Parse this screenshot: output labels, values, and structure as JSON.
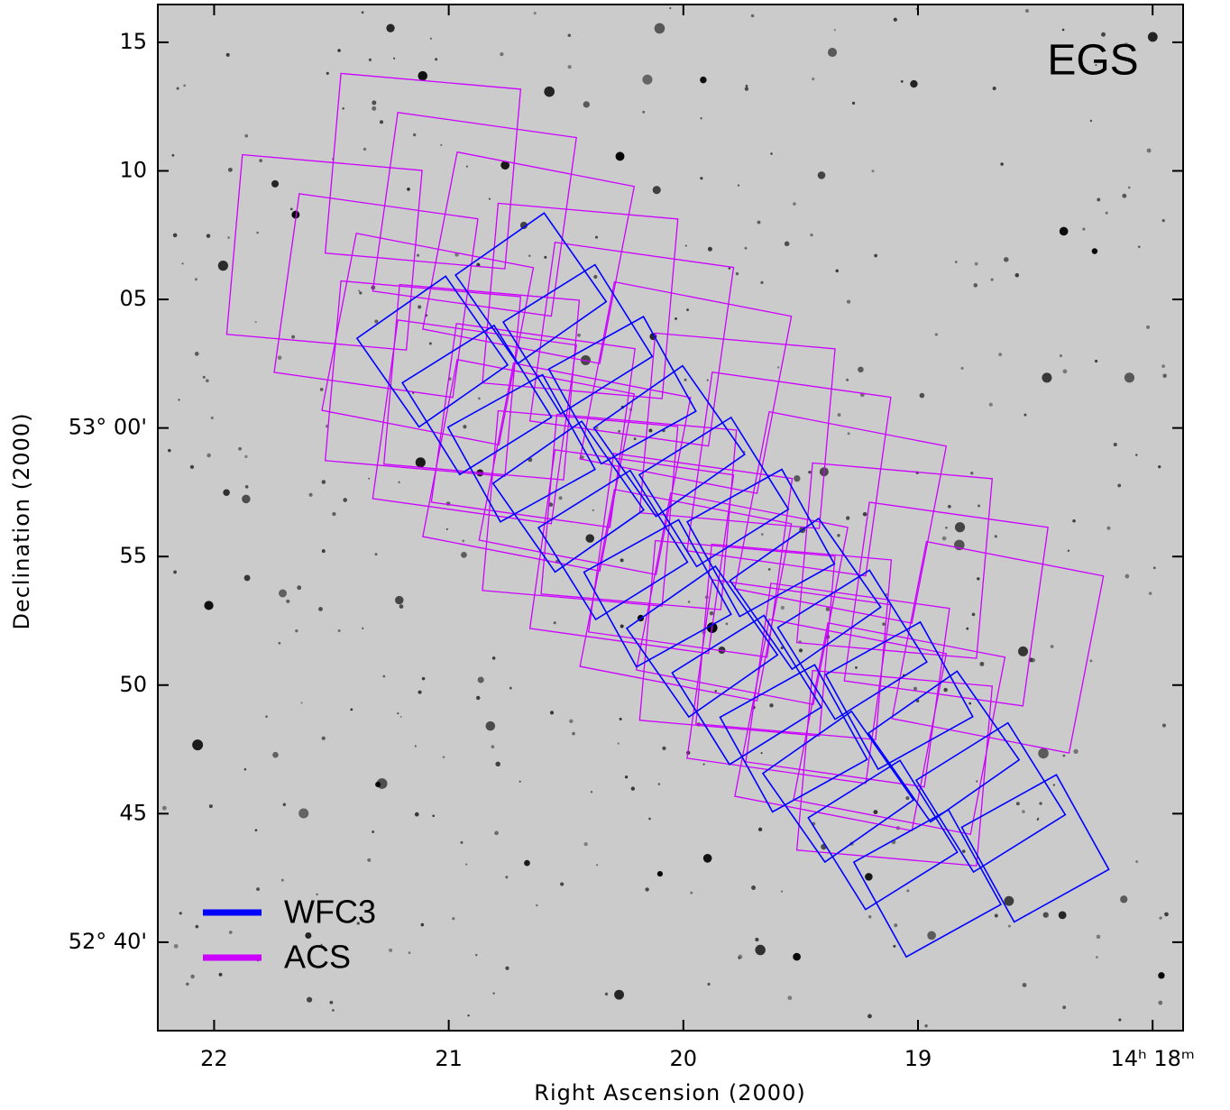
{
  "chart_data": {
    "type": "footprint",
    "title": "EGS",
    "x_label": "Right Ascension (2000)",
    "y_label": "Declination (2000)",
    "xlim": [
      22.24,
      17.87
    ],
    "ylim": [
      -23.44,
      16.47
    ],
    "xticks": [
      22,
      21,
      20,
      19,
      {
        "value": 18,
        "label": "14ʰ 18ᵐ"
      }
    ],
    "yticks": [
      15,
      10,
      {
        "value": 5,
        "label": "05"
      },
      {
        "value": 0,
        "label": "53° 00'"
      },
      {
        "value": -5,
        "label": "55"
      },
      {
        "value": -10,
        "label": "50"
      },
      {
        "value": -15,
        "label": "45"
      },
      {
        "value": -20,
        "label": "52° 40'"
      }
    ],
    "legend": "lower left",
    "series": [
      {
        "name": "WFC3",
        "color": "#0000ff",
        "ra": [
          20.65,
          20.45,
          20.26,
          20.06,
          19.87,
          19.67,
          19.48,
          19.28,
          19.08,
          18.89,
          18.69,
          18.5,
          21.07,
          20.88,
          20.69,
          20.49,
          20.3,
          20.11,
          19.92,
          19.73,
          19.53,
          19.34,
          19.15,
          18.96
        ],
        "dec": [
          5.43,
          3.45,
          1.47,
          -0.51,
          -2.49,
          -4.47,
          -6.45,
          -8.43,
          -10.41,
          -12.39,
          -14.37,
          -16.35,
          2.97,
          1.09,
          -0.79,
          -2.67,
          -4.55,
          -6.43,
          -8.31,
          -10.19,
          -12.07,
          -13.95,
          -15.83,
          -17.71
        ]
      },
      {
        "name": "ACS",
        "color": "#cc00ff",
        "ra": [
          21.11,
          20.89,
          20.66,
          20.44,
          20.22,
          19.99,
          19.77,
          19.55,
          19.33,
          19.1,
          18.88,
          18.66,
          21.53,
          21.31,
          21.09,
          20.86,
          20.64,
          20.42,
          20.19,
          19.97,
          19.75,
          19.53,
          19.3,
          19.08,
          21.11,
          20.89,
          20.66,
          20.44,
          20.22,
          19.99,
          19.77,
          19.55,
          19.33,
          19.1
        ],
        "dec": [
          9.99,
          8.31,
          6.62,
          4.94,
          3.26,
          1.57,
          -0.11,
          -1.79,
          -3.48,
          -5.16,
          -6.85,
          -8.53,
          6.83,
          5.15,
          3.46,
          1.78,
          0.1,
          -1.59,
          -3.27,
          -4.95,
          -6.64,
          -8.32,
          -10.0,
          -11.69,
          1.92,
          0.24,
          -1.45,
          -3.13,
          -4.81,
          -6.5,
          -8.18,
          -9.86,
          -11.55,
          -13.23
        ]
      }
    ]
  }
}
